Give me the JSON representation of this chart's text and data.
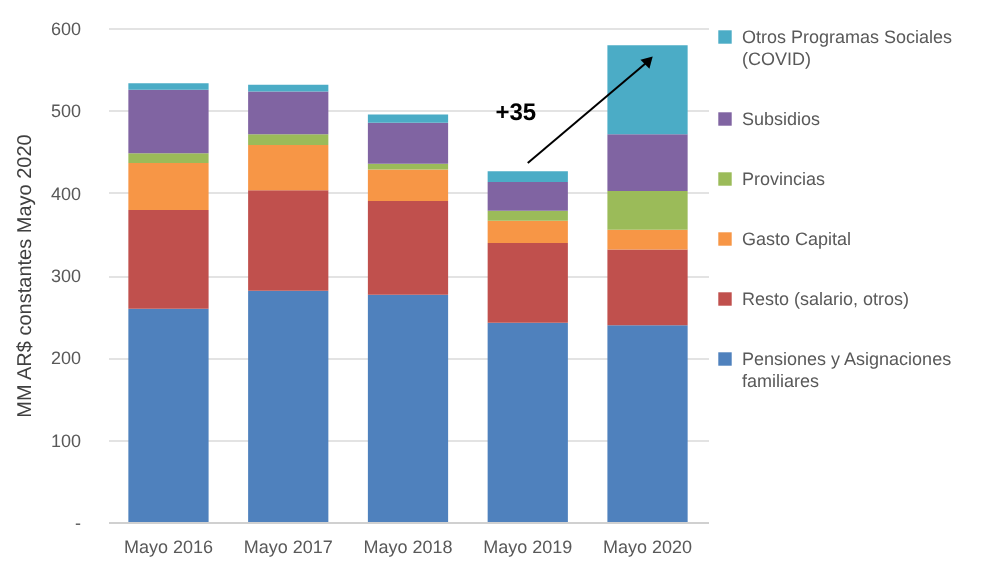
{
  "chart_data": {
    "type": "bar",
    "stacked": true,
    "ylabel": "MM AR$ constantes Mayo 2020",
    "categories": [
      "Mayo 2016",
      "Mayo 2017",
      "Mayo 2018",
      "Mayo 2019",
      "Mayo 2020"
    ],
    "series": [
      {
        "name": "Pensiones y Asignaciones familiares",
        "color": "#4f81bd",
        "values": [
          259,
          281,
          276,
          242,
          239
        ]
      },
      {
        "name": "Resto (salario, otros)",
        "color": "#c0504d",
        "values": [
          120,
          122,
          114,
          97,
          92
        ]
      },
      {
        "name": "Gasto Capital",
        "color": "#f79646",
        "values": [
          57,
          55,
          38,
          27,
          24
        ]
      },
      {
        "name": "Provincias",
        "color": "#9bbb59",
        "values": [
          12,
          13,
          7,
          12,
          47
        ]
      },
      {
        "name": "Subsidios",
        "color": "#8064a2",
        "values": [
          77,
          52,
          50,
          35,
          69
        ]
      },
      {
        "name": "Otros Programas Sociales (COVID)",
        "color": "#4bacc6",
        "values": [
          8,
          8,
          10,
          13,
          108
        ]
      }
    ],
    "ylim": [
      0,
      600
    ],
    "yticks": [
      {
        "value": 0,
        "label": "-"
      },
      100,
      200,
      300,
      400,
      500,
      600
    ],
    "grid": "y",
    "legend": "right",
    "annotations": [
      "+35"
    ]
  }
}
